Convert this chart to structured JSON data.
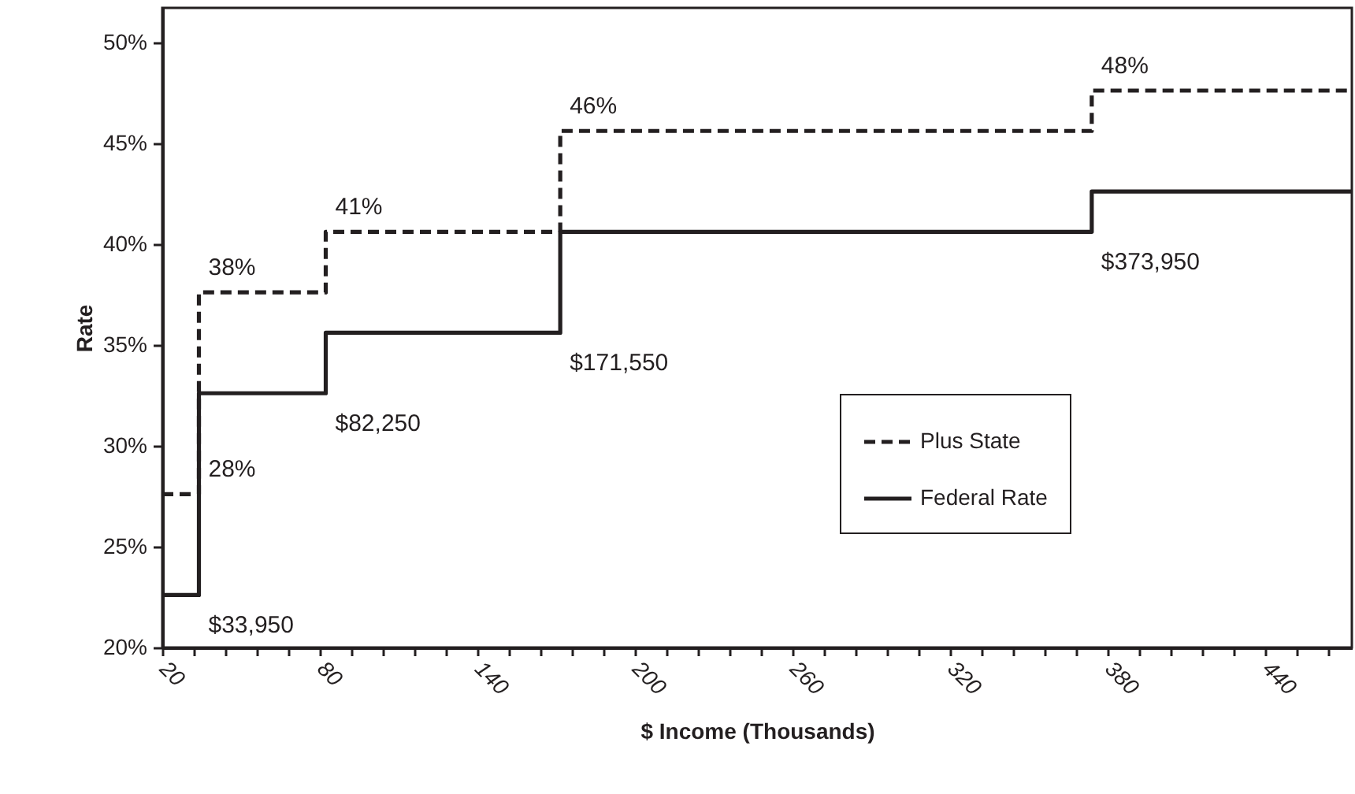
{
  "chart_data": {
    "type": "step",
    "xlabel": "$ Income (Thousands)",
    "ylabel": "Rate",
    "xlim": [
      20,
      473
    ],
    "ylim": [
      20,
      51.7
    ],
    "xticks": [
      20,
      {
        "value": 32,
        "label": null
      },
      {
        "value": 44,
        "label": null
      },
      {
        "value": 56,
        "label": null
      },
      {
        "value": 68,
        "label": null
      },
      80,
      {
        "value": 92,
        "label": null
      },
      {
        "value": 104,
        "label": null
      },
      {
        "value": 116,
        "label": null
      },
      {
        "value": 128,
        "label": null
      },
      140,
      {
        "value": 152,
        "label": null
      },
      {
        "value": 164,
        "label": null
      },
      {
        "value": 176,
        "label": null
      },
      {
        "value": 188,
        "label": null
      },
      200,
      {
        "value": 212,
        "label": null
      },
      {
        "value": 224,
        "label": null
      },
      {
        "value": 236,
        "label": null
      },
      {
        "value": 248,
        "label": null
      },
      260,
      {
        "value": 272,
        "label": null
      },
      {
        "value": 284,
        "label": null
      },
      {
        "value": 296,
        "label": null
      },
      {
        "value": 308,
        "label": null
      },
      320,
      {
        "value": 332,
        "label": null
      },
      {
        "value": 344,
        "label": null
      },
      {
        "value": 356,
        "label": null
      },
      {
        "value": 368,
        "label": null
      },
      380,
      {
        "value": 392,
        "label": null
      },
      {
        "value": 404,
        "label": null
      },
      {
        "value": 416,
        "label": null
      },
      {
        "value": 428,
        "label": null
      },
      440,
      {
        "value": 452,
        "label": null
      },
      {
        "value": 464,
        "label": null
      }
    ],
    "yticks": [
      {
        "value": 20,
        "label": "20%"
      },
      {
        "value": 25,
        "label": "25%"
      },
      {
        "value": 30,
        "label": "30%"
      },
      {
        "value": 35,
        "label": "35%"
      },
      {
        "value": 40,
        "label": "40%"
      },
      {
        "value": 45,
        "label": "45%"
      },
      {
        "value": 50,
        "label": "50%"
      }
    ],
    "series": [
      {
        "name": "Plus State",
        "color": "#231f20",
        "line_style": "dashed",
        "x": [
          20,
          33.95,
          82.25,
          171.55,
          373.95,
          473
        ],
        "values": [
          27.6,
          37.6,
          40.6,
          45.6,
          47.6,
          47.6
        ]
      },
      {
        "name": "Federal Rate",
        "color": "#231f20",
        "line_style": "solid",
        "x": [
          20,
          33.95,
          82.25,
          171.55,
          373.95,
          473
        ],
        "values": [
          22.6,
          32.6,
          35.6,
          40.6,
          42.6,
          42.6
        ]
      }
    ],
    "annotations": [
      {
        "text": "28%",
        "x": 33.95,
        "y": 27.6
      },
      {
        "text": "38%",
        "x": 33.95,
        "y": 37.6
      },
      {
        "text": "41%",
        "x": 82.25,
        "y": 40.6
      },
      {
        "text": "46%",
        "x": 171.55,
        "y": 45.6
      },
      {
        "text": "48%",
        "x": 373.95,
        "y": 47.6
      },
      {
        "text": "$33,950",
        "x": 33.95,
        "y": 22.6
      },
      {
        "text": "$82,250",
        "x": 82.25,
        "y": 32.6
      },
      {
        "text": "$171,550",
        "x": 171.55,
        "y": 35.6
      },
      {
        "text": "$373,950",
        "x": 373.95,
        "y": 40.6
      }
    ],
    "legend": "right",
    "grid": false
  }
}
